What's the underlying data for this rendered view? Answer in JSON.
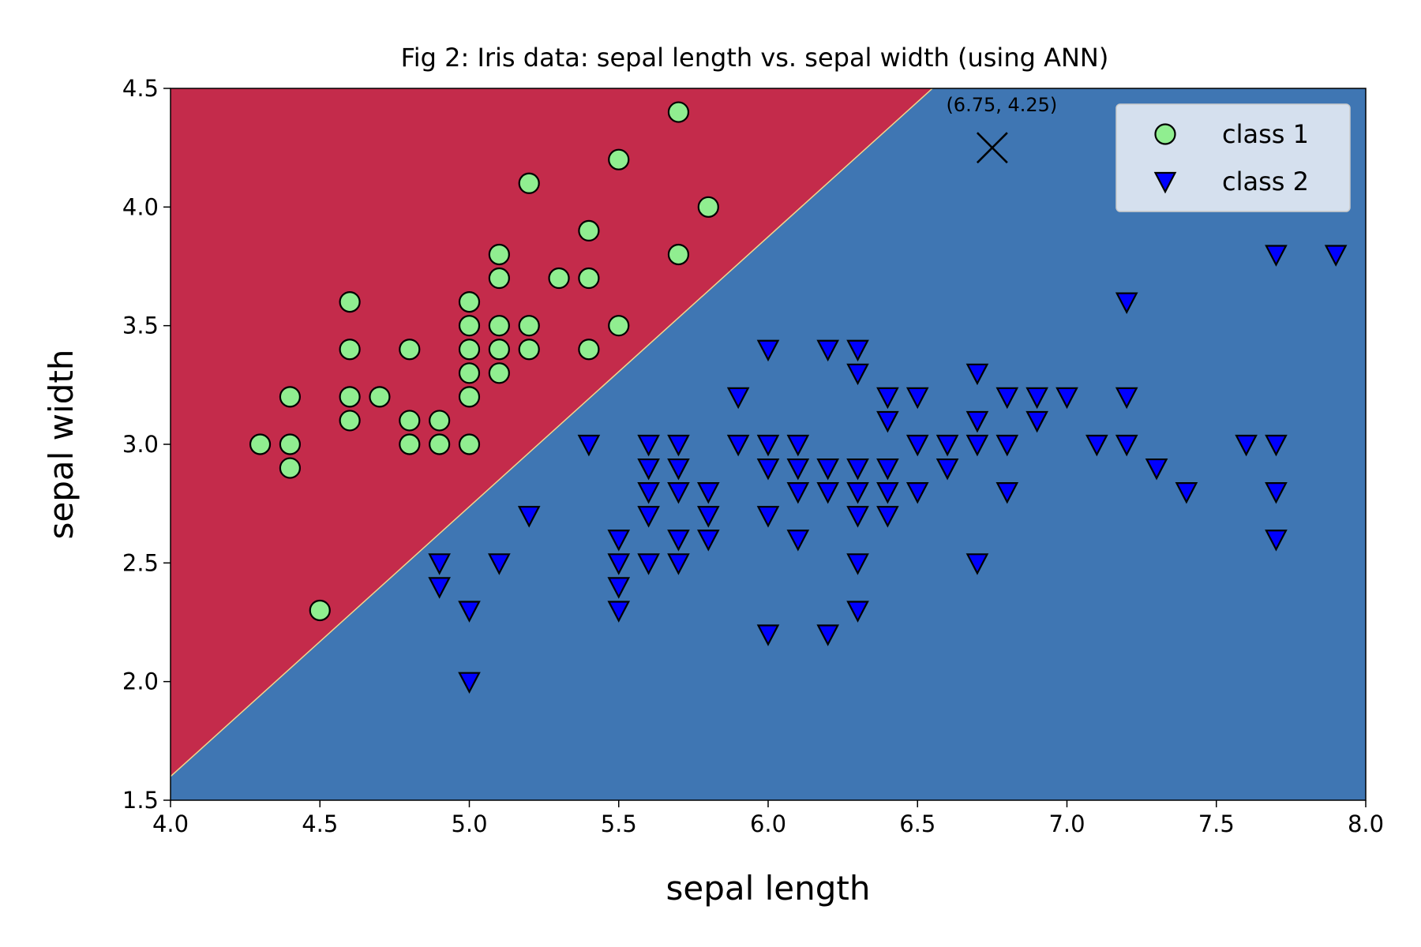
{
  "chart_data": {
    "type": "scatter",
    "title": "Fig 2: Iris data: sepal length vs. sepal width (using ANN)",
    "xlabel": "sepal length",
    "ylabel": "sepal width",
    "xlim": [
      4.0,
      8.0
    ],
    "ylim": [
      1.5,
      4.5
    ],
    "xticks": [
      "4.0",
      "4.5",
      "5.0",
      "5.5",
      "6.0",
      "6.5",
      "7.0",
      "7.5",
      "8.0"
    ],
    "yticks": [
      "1.5",
      "2.0",
      "2.5",
      "3.0",
      "3.5",
      "4.0",
      "4.5"
    ],
    "grid": false,
    "legend_position": "top-right",
    "regions": [
      {
        "class": "class 1",
        "color": "#c42b4b",
        "side": "upper-left"
      },
      {
        "class": "class 2",
        "color": "#3f76b3",
        "side": "lower-right"
      }
    ],
    "decision_boundary": [
      [
        4.0,
        1.6
      ],
      [
        6.55,
        4.5
      ]
    ],
    "series": [
      {
        "name": "class 1",
        "marker": "circle",
        "color": "#90ee90",
        "points": [
          [
            4.3,
            3.0
          ],
          [
            4.4,
            3.2
          ],
          [
            4.4,
            3.0
          ],
          [
            4.4,
            2.9
          ],
          [
            4.5,
            2.3
          ],
          [
            4.6,
            3.6
          ],
          [
            4.6,
            3.4
          ],
          [
            4.6,
            3.2
          ],
          [
            4.6,
            3.1
          ],
          [
            4.7,
            3.2
          ],
          [
            4.8,
            3.4
          ],
          [
            4.8,
            3.1
          ],
          [
            4.8,
            3.0
          ],
          [
            4.9,
            3.1
          ],
          [
            4.9,
            3.0
          ],
          [
            5.0,
            3.6
          ],
          [
            5.0,
            3.5
          ],
          [
            5.0,
            3.4
          ],
          [
            5.0,
            3.3
          ],
          [
            5.0,
            3.2
          ],
          [
            5.0,
            3.0
          ],
          [
            5.1,
            3.8
          ],
          [
            5.1,
            3.7
          ],
          [
            5.1,
            3.5
          ],
          [
            5.1,
            3.4
          ],
          [
            5.1,
            3.3
          ],
          [
            5.2,
            4.1
          ],
          [
            5.2,
            3.5
          ],
          [
            5.2,
            3.4
          ],
          [
            5.3,
            3.7
          ],
          [
            5.4,
            3.9
          ],
          [
            5.4,
            3.7
          ],
          [
            5.4,
            3.4
          ],
          [
            5.5,
            4.2
          ],
          [
            5.5,
            3.5
          ],
          [
            5.7,
            4.4
          ],
          [
            5.7,
            3.8
          ],
          [
            5.8,
            4.0
          ]
        ]
      },
      {
        "name": "class 2",
        "marker": "triangle-down",
        "color": "#0000ff",
        "points": [
          [
            4.9,
            2.5
          ],
          [
            4.9,
            2.4
          ],
          [
            5.0,
            2.3
          ],
          [
            5.0,
            2.0
          ],
          [
            5.1,
            2.5
          ],
          [
            5.2,
            2.7
          ],
          [
            5.4,
            3.0
          ],
          [
            5.5,
            2.6
          ],
          [
            5.5,
            2.5
          ],
          [
            5.5,
            2.4
          ],
          [
            5.5,
            2.3
          ],
          [
            5.6,
            3.0
          ],
          [
            5.6,
            2.9
          ],
          [
            5.6,
            2.8
          ],
          [
            5.6,
            2.7
          ],
          [
            5.6,
            2.5
          ],
          [
            5.7,
            3.0
          ],
          [
            5.7,
            2.9
          ],
          [
            5.7,
            2.8
          ],
          [
            5.7,
            2.6
          ],
          [
            5.7,
            2.5
          ],
          [
            5.8,
            2.8
          ],
          [
            5.8,
            2.7
          ],
          [
            5.8,
            2.6
          ],
          [
            5.9,
            3.2
          ],
          [
            5.9,
            3.0
          ],
          [
            6.0,
            3.4
          ],
          [
            6.0,
            3.0
          ],
          [
            6.0,
            2.9
          ],
          [
            6.0,
            2.7
          ],
          [
            6.0,
            2.2
          ],
          [
            6.1,
            3.0
          ],
          [
            6.1,
            2.9
          ],
          [
            6.1,
            2.8
          ],
          [
            6.1,
            2.6
          ],
          [
            6.2,
            3.4
          ],
          [
            6.2,
            2.9
          ],
          [
            6.2,
            2.8
          ],
          [
            6.2,
            2.2
          ],
          [
            6.3,
            3.4
          ],
          [
            6.3,
            3.3
          ],
          [
            6.3,
            2.9
          ],
          [
            6.3,
            2.8
          ],
          [
            6.3,
            2.7
          ],
          [
            6.3,
            2.5
          ],
          [
            6.3,
            2.3
          ],
          [
            6.4,
            3.2
          ],
          [
            6.4,
            3.1
          ],
          [
            6.4,
            2.9
          ],
          [
            6.4,
            2.8
          ],
          [
            6.4,
            2.7
          ],
          [
            6.5,
            3.2
          ],
          [
            6.5,
            3.0
          ],
          [
            6.5,
            2.8
          ],
          [
            6.6,
            3.0
          ],
          [
            6.6,
            2.9
          ],
          [
            6.7,
            3.3
          ],
          [
            6.7,
            3.1
          ],
          [
            6.7,
            3.0
          ],
          [
            6.7,
            2.5
          ],
          [
            6.8,
            3.2
          ],
          [
            6.8,
            3.0
          ],
          [
            6.8,
            2.8
          ],
          [
            6.9,
            3.2
          ],
          [
            6.9,
            3.1
          ],
          [
            7.0,
            3.2
          ],
          [
            7.1,
            3.0
          ],
          [
            7.2,
            3.6
          ],
          [
            7.2,
            3.2
          ],
          [
            7.2,
            3.0
          ],
          [
            7.3,
            2.9
          ],
          [
            7.4,
            2.8
          ],
          [
            7.6,
            3.0
          ],
          [
            7.7,
            3.8
          ],
          [
            7.7,
            3.0
          ],
          [
            7.7,
            2.8
          ],
          [
            7.7,
            2.6
          ],
          [
            7.9,
            3.8
          ]
        ]
      }
    ],
    "query_point": {
      "x": 6.75,
      "y": 4.25,
      "marker": "x",
      "label": "(6.75, 4.25)"
    },
    "legend": {
      "entries": [
        {
          "label": "class 1",
          "marker": "circle",
          "color": "#90ee90"
        },
        {
          "label": "class 2",
          "marker": "triangle-down",
          "color": "#0000ff"
        }
      ]
    }
  }
}
